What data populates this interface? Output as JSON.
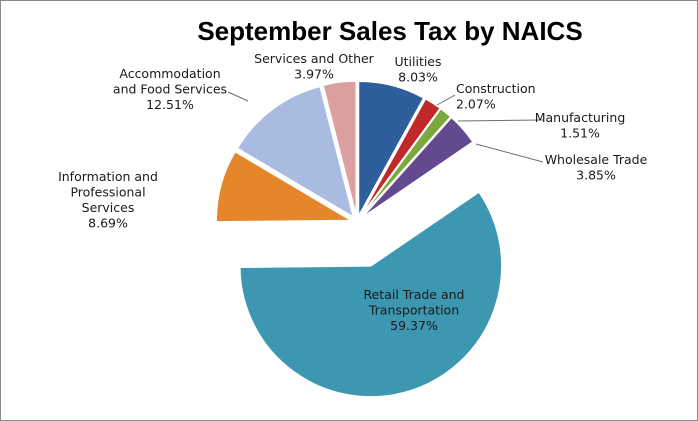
{
  "chart_data": {
    "type": "pie",
    "title": "September Sales Tax by NAICS",
    "slices": [
      {
        "name": "Utilities",
        "label_lines": [
          "Utilities"
        ],
        "value": 8.03,
        "value_text": "8.03%",
        "color": "#2E5E9C"
      },
      {
        "name": "Construction",
        "label_lines": [
          "Construction"
        ],
        "value": 2.07,
        "value_text": "2.07%",
        "color": "#C0282A"
      },
      {
        "name": "Manufacturing",
        "label_lines": [
          "Manufacturing"
        ],
        "value": 1.51,
        "value_text": "1.51%",
        "color": "#79A83B"
      },
      {
        "name": "Wholesale Trade",
        "label_lines": [
          "Wholesale Trade"
        ],
        "value": 3.85,
        "value_text": "3.85%",
        "color": "#634A8E"
      },
      {
        "name": "Retail Trade and Transportation",
        "label_lines": [
          "Retail Trade and",
          "Transportation"
        ],
        "value": 59.37,
        "value_text": "59.37%",
        "color": "#3D97B0"
      },
      {
        "name": "Information and Professional Services",
        "label_lines": [
          "Information and",
          "Professional",
          "Services"
        ],
        "value": 8.69,
        "value_text": "8.69%",
        "color": "#E5862B"
      },
      {
        "name": "Accommodation and Food Services",
        "label_lines": [
          "Accommodation",
          "and Food Services"
        ],
        "value": 12.51,
        "value_text": "12.51%",
        "color": "#A9BBE0"
      },
      {
        "name": "Services and Other",
        "label_lines": [
          "Services and Other"
        ],
        "value": 3.97,
        "value_text": "3.97%",
        "color": "#DDA0A0"
      }
    ],
    "start_angle_deg": 0,
    "direction": "clockwise",
    "exploded": true,
    "legend": "none",
    "data_labels": "category name and percentage, outside with leader lines"
  }
}
